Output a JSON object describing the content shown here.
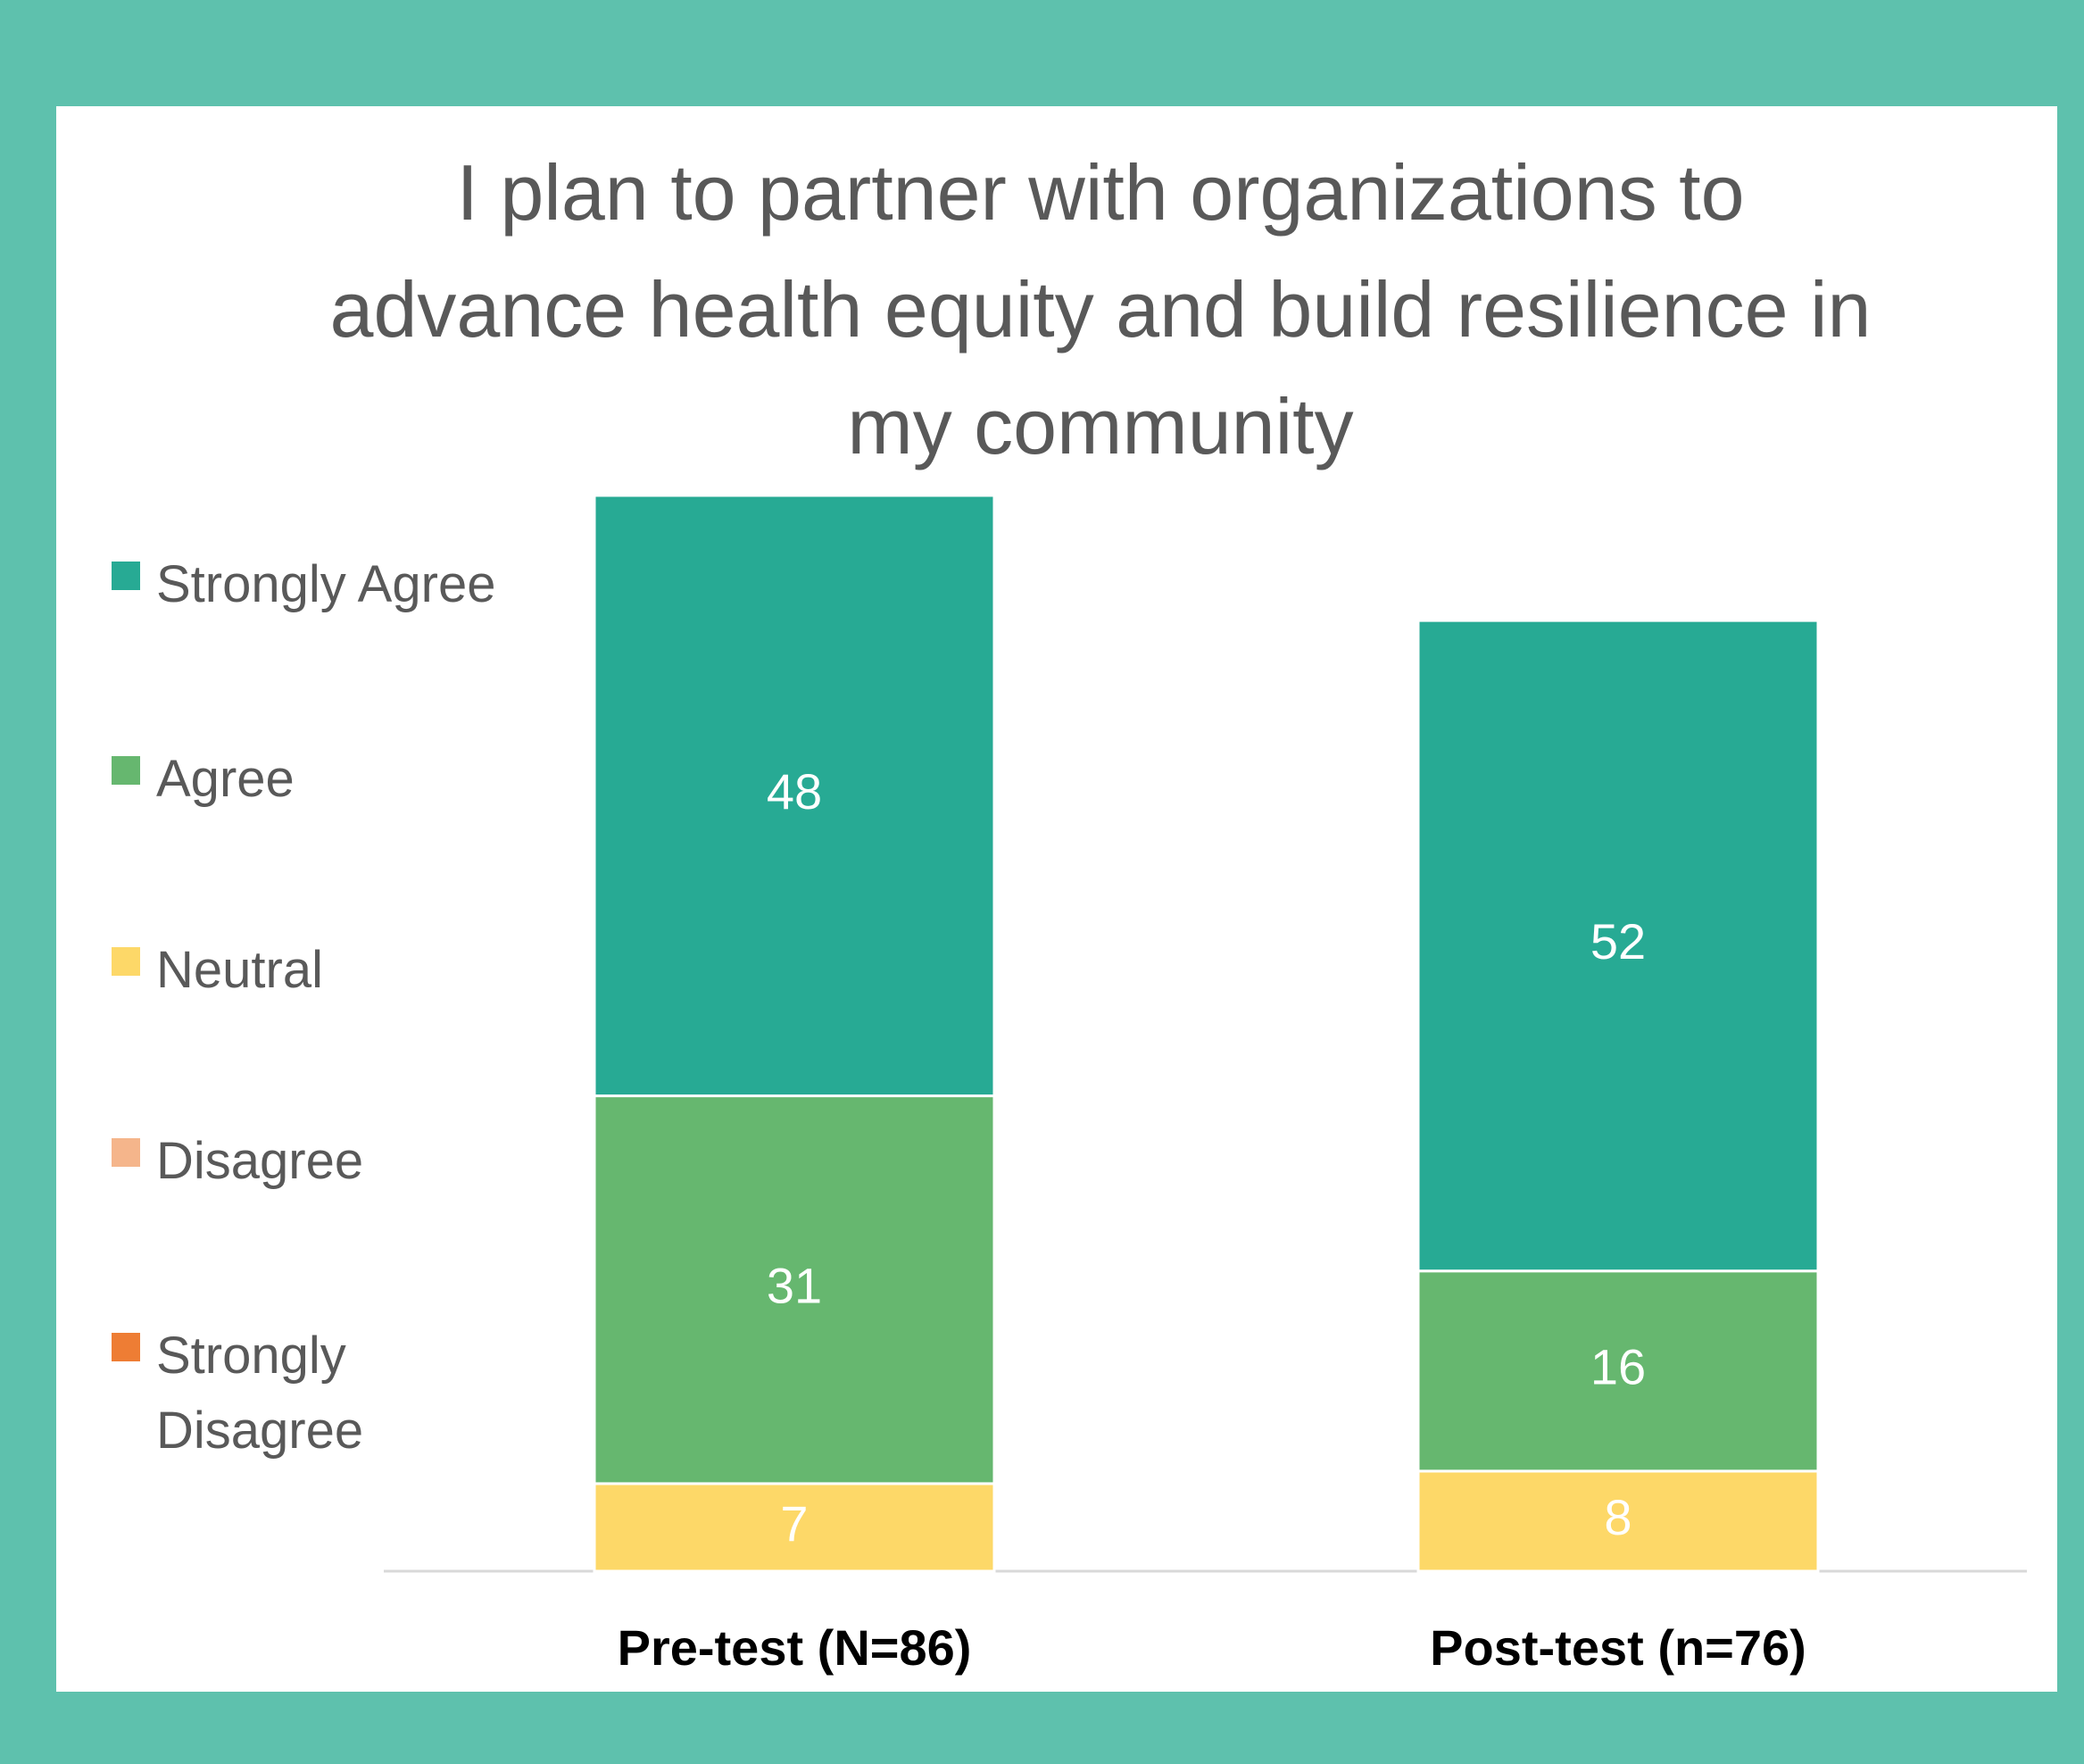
{
  "chart_data": {
    "type": "stacked_bar",
    "title": "I plan to partner with organizations to advance health equity and build resilience in my community",
    "categories": [
      "Pre-test (N=86)",
      "Post-test (n=76)"
    ],
    "series": [
      {
        "name": "Strongly Agree",
        "color": "#27aa94",
        "values": [
          48,
          52
        ]
      },
      {
        "name": "Agree",
        "color": "#66b76f",
        "values": [
          31,
          16
        ]
      },
      {
        "name": "Neutral",
        "color": "#fdd868",
        "values": [
          7,
          8
        ]
      },
      {
        "name": "Disagree",
        "color": "#f5b58b",
        "values": [
          0,
          0
        ]
      },
      {
        "name": "Strongly Disagree",
        "color": "#ee7d34",
        "values": [
          0,
          0
        ]
      }
    ],
    "legend": "left"
  }
}
